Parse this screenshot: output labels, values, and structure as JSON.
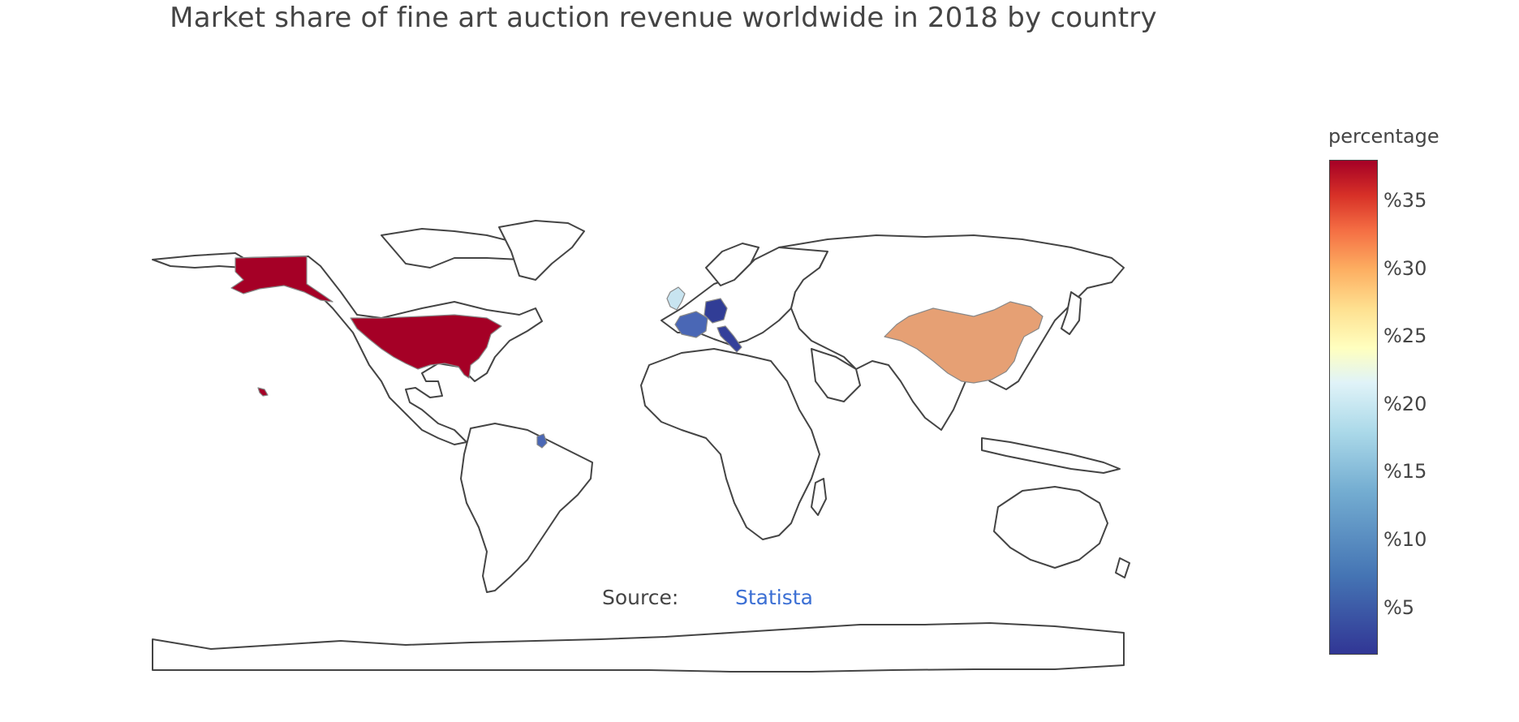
{
  "title": "Market share of fine art auction revenue worldwide in 2018 by country",
  "source": {
    "label": "Source:",
    "link": "Statista"
  },
  "colorbar": {
    "title": "percentage",
    "ticks": [
      "%35",
      "%30",
      "%25",
      "%20",
      "%15",
      "%10",
      "%5"
    ],
    "tick_values": [
      35,
      30,
      25,
      20,
      15,
      10,
      5
    ],
    "range": [
      1.5,
      38
    ],
    "colorscale": [
      "#313695",
      "#4575b4",
      "#74add1",
      "#abd9e9",
      "#e0f3f8",
      "#ffffbf",
      "#fee090",
      "#fdae61",
      "#f46d43",
      "#d73027",
      "#a50026"
    ]
  },
  "regions": [
    {
      "country": "United States",
      "value": 38,
      "color": "#a50026"
    },
    {
      "country": "China",
      "value": 29,
      "color": "#e6a074"
    },
    {
      "country": "United Kingdom",
      "value": 16,
      "color": "#c8e4f0"
    },
    {
      "country": "France",
      "value": 5,
      "color": "#4a67b5"
    },
    {
      "country": "Germany",
      "value": 2,
      "color": "#313d96"
    },
    {
      "country": "Italy",
      "value": 2,
      "color": "#34409a"
    }
  ]
}
